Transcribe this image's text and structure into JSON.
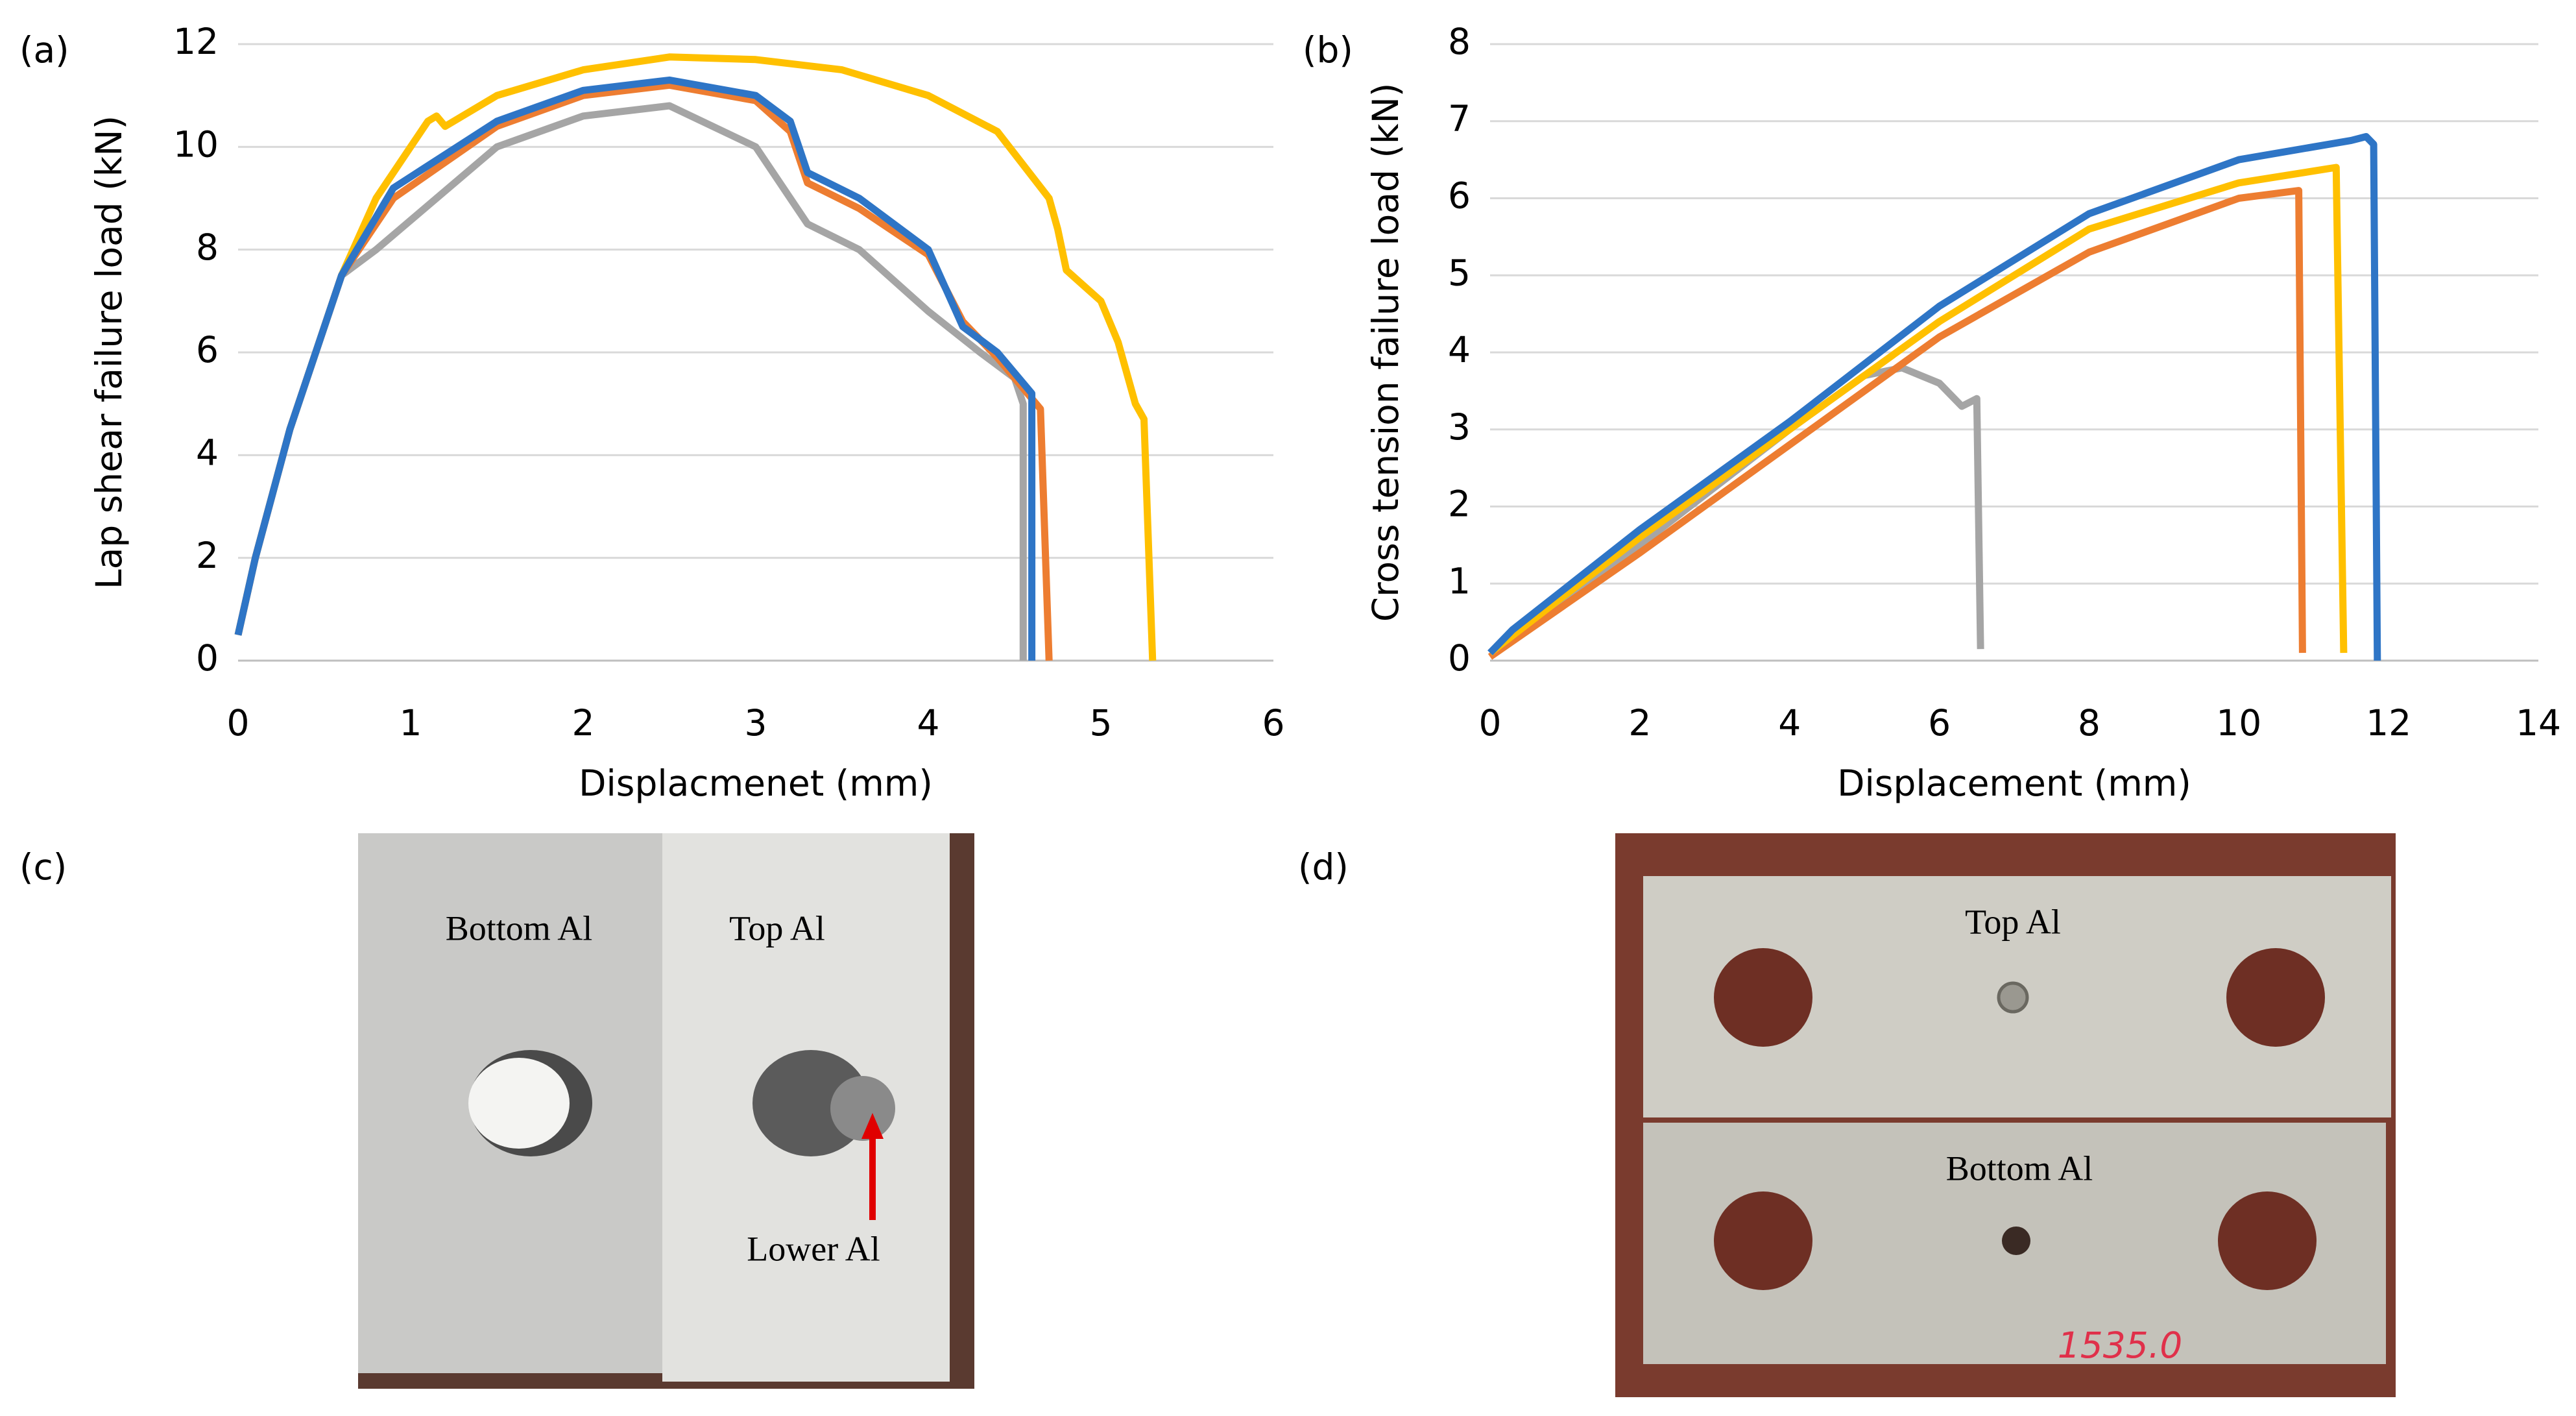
{
  "chart_data": [
    {
      "type": "line",
      "title": "(a)",
      "x_label": "Displacmenet (mm)",
      "y_label": "Lap shear failure load (kN)",
      "xlim": [
        0,
        6
      ],
      "ylim": [
        0,
        12
      ],
      "xticks": [
        0,
        1,
        2,
        3,
        4,
        5,
        6
      ],
      "yticks": [
        0,
        2,
        4,
        6,
        8,
        10,
        12
      ],
      "grid": true,
      "series": [
        {
          "color": "#ffc000",
          "x": [
            0,
            0.1,
            0.3,
            0.6,
            0.8,
            1,
            1.1,
            1.15,
            1.2,
            1.5,
            2,
            2.5,
            3,
            3.5,
            4,
            4.4,
            4.7,
            4.75,
            4.8,
            5,
            5.1,
            5.2,
            5.25,
            5.3
          ],
          "values": [
            0.5,
            2,
            4.5,
            7.5,
            9,
            10,
            10.5,
            10.6,
            10.4,
            11,
            11.5,
            11.75,
            11.7,
            11.5,
            11,
            10.3,
            9,
            8.4,
            7.6,
            7,
            6.2,
            5,
            4.7,
            0
          ]
        },
        {
          "color": "#a5a5a5",
          "x": [
            0,
            0.1,
            0.3,
            0.6,
            0.8,
            1.5,
            2,
            2.5,
            3,
            3.2,
            3.3,
            3.6,
            4,
            4.3,
            4.5,
            4.55,
            4.55
          ],
          "values": [
            0.5,
            2,
            4.5,
            7.5,
            8,
            10,
            10.6,
            10.8,
            10,
            9,
            8.5,
            8,
            6.8,
            6,
            5.5,
            5,
            0
          ]
        },
        {
          "color": "#ed7d31",
          "x": [
            0,
            0.1,
            0.3,
            0.6,
            0.9,
            1.5,
            2,
            2.5,
            3,
            3.2,
            3.3,
            3.6,
            4,
            4.2,
            4.4,
            4.65,
            4.7
          ],
          "values": [
            0.5,
            2,
            4.5,
            7.5,
            9,
            10.4,
            11,
            11.2,
            10.9,
            10.3,
            9.3,
            8.8,
            7.9,
            6.6,
            5.9,
            4.9,
            0
          ]
        },
        {
          "color": "#2e75c6",
          "x": [
            0,
            0.1,
            0.3,
            0.6,
            0.9,
            1.5,
            2,
            2.5,
            3,
            3.2,
            3.3,
            3.6,
            4,
            4.2,
            4.4,
            4.6,
            4.6
          ],
          "values": [
            0.5,
            2,
            4.5,
            7.5,
            9.2,
            10.5,
            11.1,
            11.3,
            11,
            10.5,
            9.5,
            9,
            8,
            6.5,
            6,
            5.2,
            0
          ]
        }
      ]
    },
    {
      "type": "line",
      "title": "(b)",
      "x_label": "Displacement (mm)",
      "y_label": "Cross tension failure load (kN)",
      "xlim": [
        0,
        14
      ],
      "ylim": [
        0,
        8
      ],
      "xticks": [
        0,
        2,
        4,
        6,
        8,
        10,
        12,
        14
      ],
      "yticks": [
        0,
        1,
        2,
        3,
        4,
        5,
        6,
        7,
        8
      ],
      "grid": true,
      "series": [
        {
          "color": "#a5a5a5",
          "x": [
            0,
            2,
            4,
            5,
            5.5,
            6,
            6.3,
            6.5,
            6.55
          ],
          "values": [
            0.1,
            1.5,
            3,
            3.7,
            3.8,
            3.6,
            3.3,
            3.4,
            0.15
          ]
        },
        {
          "color": "#ed7d31",
          "x": [
            0,
            2,
            4,
            6,
            8,
            10,
            10.8,
            10.85
          ],
          "values": [
            0.05,
            1.4,
            2.8,
            4.2,
            5.3,
            6,
            6.1,
            0.1
          ]
        },
        {
          "color": "#ffc000",
          "x": [
            0,
            2,
            4,
            6,
            8,
            10,
            11.3,
            11.4
          ],
          "values": [
            0.1,
            1.6,
            3,
            4.4,
            5.6,
            6.2,
            6.4,
            0.1
          ]
        },
        {
          "color": "#2e75c6",
          "x": [
            0,
            0.3,
            2,
            4,
            6,
            8,
            10,
            11.5,
            11.7,
            11.8,
            11.85
          ],
          "values": [
            0.1,
            0.4,
            1.7,
            3.1,
            4.6,
            5.8,
            6.5,
            6.75,
            6.8,
            6.7,
            0
          ]
        }
      ]
    }
  ],
  "photos": [
    {
      "label": "(c)",
      "texts": [
        "Bottom Al",
        "Top Al",
        "Lower Al"
      ]
    },
    {
      "label": "(d)",
      "texts": [
        "Top Al",
        "Bottom Al",
        "1535.0"
      ]
    }
  ]
}
